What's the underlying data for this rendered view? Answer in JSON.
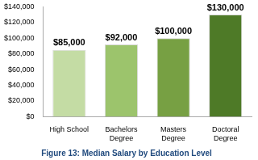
{
  "chart_data": {
    "type": "bar",
    "title": "Figure 13: Median Salary by Education Level",
    "categories": [
      "High School",
      "Bachelors Degree",
      "Masters Degree",
      "Doctoral Degree"
    ],
    "values": [
      85000,
      92000,
      100000,
      130000
    ],
    "value_labels": [
      "$85,000",
      "$92,000",
      "$100,000",
      "$130,000"
    ],
    "colors": [
      "#c4dca4",
      "#9cc46c",
      "#77a043",
      "#4e7a27"
    ],
    "ylim": [
      0,
      140000
    ],
    "yticks": [
      {
        "value": 0,
        "label": "$0"
      },
      {
        "value": 20000,
        "label": "$20,000"
      },
      {
        "value": 40000,
        "label": "$40,000"
      },
      {
        "value": 60000,
        "label": "$60,000"
      },
      {
        "value": 80000,
        "label": "$80,000"
      },
      {
        "value": 100000,
        "label": "$100,000"
      },
      {
        "value": 120000,
        "label": "$120,000"
      },
      {
        "value": 140000,
        "label": "$140,000"
      }
    ],
    "grid": false,
    "data_labels": true
  }
}
